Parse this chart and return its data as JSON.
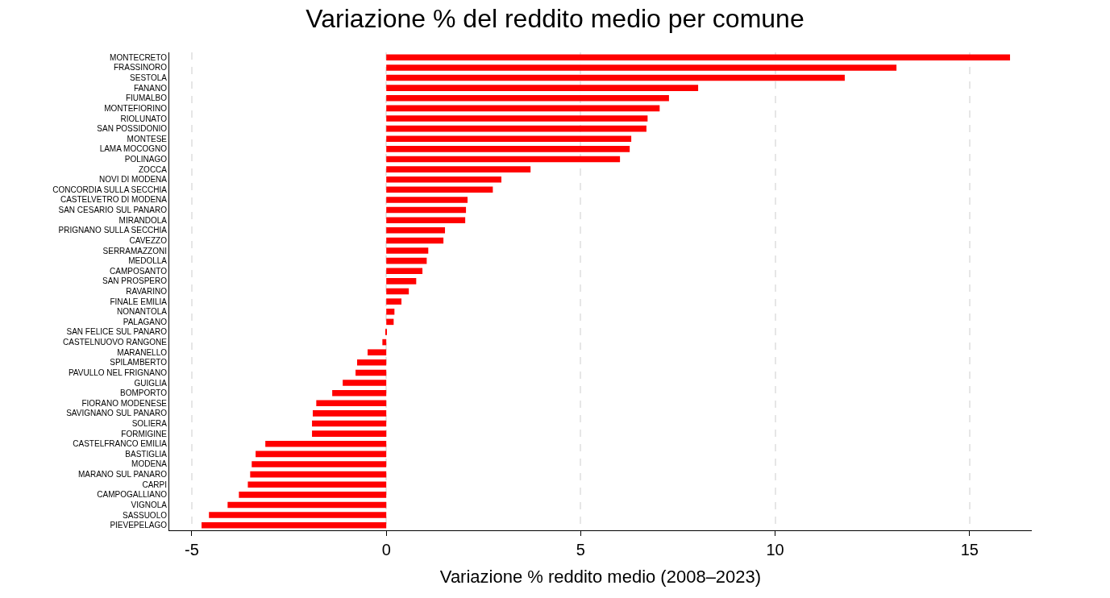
{
  "chart_data": {
    "type": "bar",
    "orientation": "horizontal",
    "title": "Variazione % del reddito medio per comune",
    "xlabel": "Variazione % reddito medio (2008–2023)",
    "categories": [
      "MONTECRETO",
      "FRASSINORO",
      "SESTOLA",
      "FANANO",
      "FIUMALBO",
      "MONTEFIORINO",
      "RIOLUNATO",
      "SAN POSSIDONIO",
      "MONTESE",
      "LAMA MOCOGNO",
      "POLINAGO",
      "ZOCCA",
      "NOVI DI MODENA",
      "CONCORDIA SULLA SECCHIA",
      "CASTELVETRO DI MODENA",
      "SAN CESARIO SUL PANARO",
      "MIRANDOLA",
      "PRIGNANO SULLA SECCHIA",
      "CAVEZZO",
      "SERRAMAZZONI",
      "MEDOLLA",
      "CAMPOSANTO",
      "SAN PROSPERO",
      "RAVARINO",
      "FINALE EMILIA",
      "NONANTOLA",
      "PALAGANO",
      "SAN FELICE SUL PANARO",
      "CASTELNUOVO RANGONE",
      "MARANELLO",
      "SPILAMBERTO",
      "PAVULLO NEL FRIGNANO",
      "GUIGLIA",
      "BOMPORTO",
      "FIORANO MODENESE",
      "SAVIGNANO SUL PANARO",
      "SOLIERA",
      "FORMIGINE",
      "CASTELFRANCO EMILIA",
      "BASTIGLIA",
      "MODENA",
      "MARANO SUL PANARO",
      "CARPI",
      "CAMPOGALLIANO",
      "VIGNOLA",
      "SASSUOLO",
      "PIEVEPELAGO"
    ],
    "values": [
      16.04,
      13.12,
      11.79,
      8.02,
      7.27,
      7.03,
      6.72,
      6.69,
      6.3,
      6.26,
      6.01,
      3.71,
      2.96,
      2.74,
      2.09,
      2.05,
      2.03,
      1.51,
      1.47,
      1.08,
      1.04,
      0.93,
      0.77,
      0.58,
      0.39,
      0.21,
      0.19,
      -0.02,
      -0.1,
      -0.48,
      -0.75,
      -0.79,
      -1.12,
      -1.39,
      -1.8,
      -1.89,
      -1.91,
      -1.91,
      -3.11,
      -3.36,
      -3.46,
      -3.5,
      -3.56,
      -3.79,
      -4.08,
      -4.56,
      -4.75
    ],
    "color": "#ff0000",
    "xlim": [
      -5.58,
      16.6
    ],
    "xticks": [
      -5,
      0,
      5,
      10,
      15
    ],
    "grid": "x"
  }
}
